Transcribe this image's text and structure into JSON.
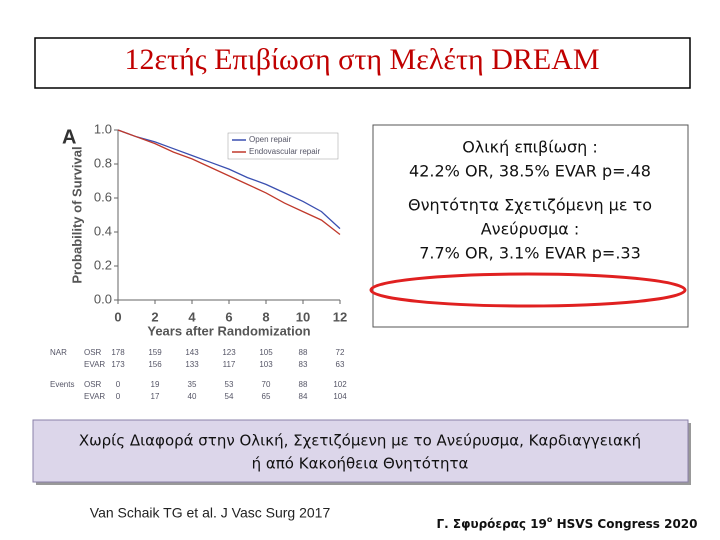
{
  "title": "12ετής Επιβίωση στη Μελέτη DREAM",
  "chart_data": {
    "type": "line",
    "panel_label": "A",
    "x_label": "Years after Randomization",
    "y_label": "Probability of Survival",
    "x": [
      0,
      1,
      2,
      3,
      4,
      5,
      6,
      7,
      8,
      9,
      10,
      11,
      12
    ],
    "series": [
      {
        "name": "Open repair",
        "color": "#3a4fb0",
        "values": [
          1.0,
          0.96,
          0.93,
          0.89,
          0.85,
          0.81,
          0.77,
          0.72,
          0.68,
          0.63,
          0.58,
          0.52,
          0.42
        ]
      },
      {
        "name": "Endovascular repair",
        "color": "#c0392b",
        "values": [
          1.0,
          0.96,
          0.92,
          0.87,
          0.83,
          0.78,
          0.73,
          0.68,
          0.63,
          0.57,
          0.52,
          0.47,
          0.385
        ]
      }
    ],
    "xlim": [
      0,
      12
    ],
    "xticks": [
      0,
      2,
      4,
      6,
      8,
      10,
      12
    ],
    "ylim": [
      0,
      1.0
    ],
    "yticks": [
      {
        "value": 0,
        "label": "0.0"
      },
      0.2,
      0.4,
      0.6,
      0.8,
      {
        "value": 1.0,
        "label": "1.0"
      }
    ],
    "legend": "upper right"
  },
  "risk_table": [
    {
      "label": "NAR",
      "rows": [
        {
          "name": "OSR",
          "values": [
            178,
            159,
            143,
            123,
            105,
            88,
            72
          ]
        },
        {
          "name": "EVAR",
          "values": [
            173,
            156,
            133,
            117,
            103,
            83,
            63
          ]
        }
      ]
    },
    {
      "label": "Events",
      "rows": [
        {
          "name": "OSR",
          "values": [
            0,
            19,
            35,
            53,
            70,
            88,
            102
          ]
        },
        {
          "name": "EVAR",
          "values": [
            0,
            17,
            40,
            54,
            65,
            84,
            104
          ]
        }
      ]
    }
  ],
  "annotation": {
    "lines": [
      "Ολική επιβίωση :",
      "42.2% OR, 38.5% EVAR p=.48",
      "Θνητότητα Σχετιζόμενη με το",
      "Ανεύρυσμα :",
      "7.7% OR, 3.1% EVAR p=.33"
    ]
  },
  "conclusion": {
    "lines": [
      "Χωρίς Διαφορά στην Ολική, Σχετιζόμενη με το Ανεύρυσμα, Καρδιαγγειακή",
      "ή από Κακοήθεια Θνητότητα"
    ]
  },
  "citation": "Van Schaik TG et al. J Vasc Surg 2017",
  "footer": {
    "before": "Γ. Σφυρόερας 19",
    "sup": "ο",
    "after": " HSVS Congress 2020"
  }
}
